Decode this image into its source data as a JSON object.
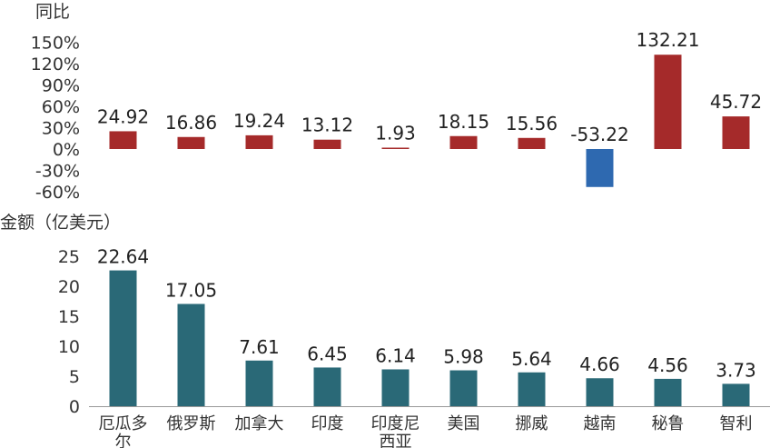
{
  "chart_data": [
    {
      "type": "bar",
      "title": "",
      "ylabel": "同比",
      "ylim": [
        -60,
        150
      ],
      "yticks": [
        "150%",
        "120%",
        "90%",
        "60%",
        "30%",
        "0%",
        "-30%",
        "-60%"
      ],
      "ytick_values": [
        150,
        120,
        90,
        60,
        30,
        0,
        -30,
        -60
      ],
      "categories": [
        "厄瓜多尔",
        "俄罗斯",
        "加拿大",
        "印度",
        "印度尼西亚",
        "美国",
        "挪威",
        "越南",
        "秘鲁",
        "智利"
      ],
      "values": [
        24.92,
        16.86,
        19.24,
        13.12,
        1.93,
        18.15,
        15.56,
        -53.22,
        132.21,
        45.72
      ],
      "data_labels": [
        "24.92",
        "16.86",
        "19.24",
        "13.12",
        "1.93",
        "18.15",
        "15.56",
        "-53.22",
        "132.21",
        "45.72"
      ],
      "colors": {
        "positive": "#a52a2a",
        "negative": "#2e69b0"
      }
    },
    {
      "type": "bar",
      "title": "",
      "ylabel": "金额（亿美元）",
      "ylim": [
        0,
        25
      ],
      "yticks": [
        "25",
        "20",
        "15",
        "10",
        "5",
        "0"
      ],
      "ytick_values": [
        25,
        20,
        15,
        10,
        5,
        0
      ],
      "categories": [
        "厄瓜多尔",
        "俄罗斯",
        "加拿大",
        "印度",
        "印度尼西亚",
        "美国",
        "挪威",
        "越南",
        "秘鲁",
        "智利"
      ],
      "category_lines": [
        [
          "厄瓜多",
          "尔"
        ],
        [
          "俄罗斯"
        ],
        [
          "加拿大"
        ],
        [
          "印度"
        ],
        [
          "印度尼",
          "西亚"
        ],
        [
          "美国"
        ],
        [
          "挪威"
        ],
        [
          "越南"
        ],
        [
          "秘鲁"
        ],
        [
          "智利"
        ]
      ],
      "values": [
        22.64,
        17.05,
        7.61,
        6.45,
        6.14,
        5.98,
        5.64,
        4.66,
        4.56,
        3.73
      ],
      "data_labels": [
        "22.64",
        "17.05",
        "7.61",
        "6.45",
        "6.14",
        "5.98",
        "5.64",
        "4.66",
        "4.56",
        "3.73"
      ],
      "colors": {
        "bar": "#2a6977"
      }
    }
  ]
}
